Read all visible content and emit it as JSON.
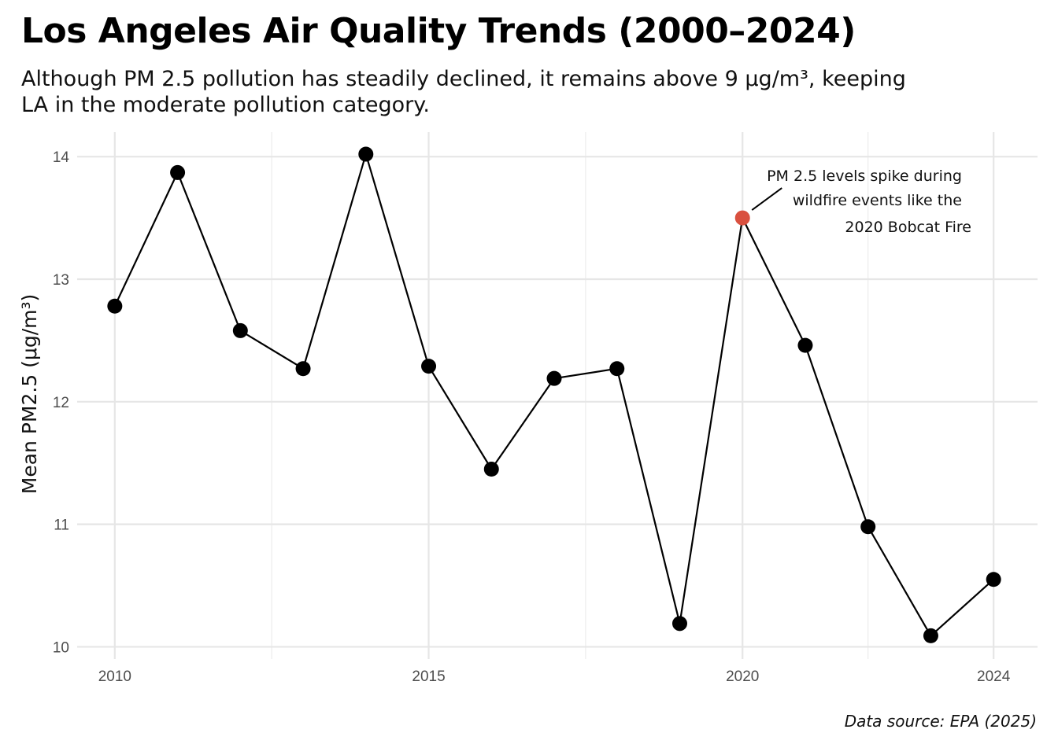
{
  "title": "Los Angeles Air Quality Trends (2000–2024)",
  "subtitle": "Although PM 2.5 pollution has steadily declined, it remains above 9 μg/m³, keeping LA in the moderate pollution category.",
  "caption": "Data source: EPA (2025)",
  "chart_data": {
    "type": "line",
    "title": "Los Angeles Air Quality Trends (2000–2024)",
    "ylabel": "Mean PM2.5 (μg/m³)",
    "xlabel": "",
    "x": [
      2010,
      2011,
      2012,
      2013,
      2014,
      2015,
      2016,
      2017,
      2018,
      2019,
      2020,
      2021,
      2022,
      2023,
      2024
    ],
    "series": [
      {
        "values": [
          12.78,
          13.87,
          12.58,
          12.27,
          14.02,
          12.29,
          11.45,
          12.19,
          12.27,
          10.19,
          13.5,
          12.46,
          10.98,
          10.09,
          10.55
        ]
      }
    ],
    "highlight": {
      "x": 2020,
      "y": 13.5,
      "color": "#d9503f"
    },
    "annotation": {
      "lines": [
        "PM 2.5 levels spike during",
        "wildfire events like the",
        "2020 Bobcat Fire"
      ]
    },
    "xticks": [
      2010,
      2015,
      2020,
      2024
    ],
    "xtick_labels": [
      "2010",
      "2015",
      "2020",
      "2024"
    ],
    "yticks": [
      10,
      11,
      12,
      13,
      14
    ],
    "ytick_labels": [
      "10",
      "11",
      "12",
      "13",
      "14"
    ],
    "xlim": [
      2009.4,
      2024.7
    ],
    "ylim": [
      9.9,
      14.2
    ],
    "grid": true,
    "line_color": "#000000",
    "point_color": "#000000",
    "grid_color": "#e6e6e6"
  }
}
